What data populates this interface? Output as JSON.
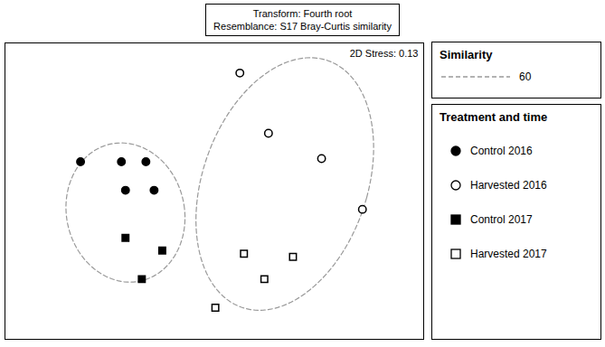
{
  "chart_data": {
    "type": "scatter",
    "title": "Transform: Fourth root\nResemblance: S17 Bray-Curtis similarity",
    "annotations": [
      "2D Stress: 0.13"
    ],
    "legend_title": "Treatment and time",
    "legend": "right",
    "tick_labels": false,
    "grid": false,
    "xlim": [
      -1.05,
      1.0
    ],
    "ylim": [
      -0.92,
      0.95
    ],
    "series": [
      {
        "name": "Control 2016",
        "color": "#000000",
        "marker": "circle",
        "values": [
          [
            -0.68,
            0.2
          ],
          [
            -0.48,
            0.2
          ],
          [
            -0.36,
            0.2
          ],
          [
            -0.46,
            0.02
          ],
          [
            -0.32,
            0.02
          ]
        ]
      },
      {
        "name": "Harvested 2016",
        "color": "#000000",
        "marker": "open-circle",
        "values": [
          [
            0.1,
            0.76
          ],
          [
            0.24,
            0.38
          ],
          [
            0.5,
            0.22
          ],
          [
            0.7,
            -0.1
          ]
        ]
      },
      {
        "name": "Control 2017",
        "color": "#000000",
        "marker": "square",
        "values": [
          [
            -0.46,
            -0.28
          ],
          [
            -0.28,
            -0.36
          ],
          [
            -0.38,
            -0.54
          ]
        ]
      },
      {
        "name": "Harvested 2017",
        "color": "#000000",
        "marker": "open-square",
        "values": [
          [
            0.12,
            -0.38
          ],
          [
            0.36,
            -0.4
          ],
          [
            0.22,
            -0.54
          ],
          [
            -0.02,
            -0.72
          ]
        ]
      }
    ],
    "ellipses": {
      "name": "Similarity",
      "value": 60,
      "color": "#999999",
      "line_style": "dashed",
      "shapes": [
        {
          "center": [
            -0.46,
            -0.12
          ],
          "width": 0.58,
          "height": 0.88,
          "angle": 5
        },
        {
          "center": [
            0.32,
            0.06
          ],
          "width": 0.82,
          "height": 1.62,
          "angle": -12
        }
      ]
    }
  }
}
